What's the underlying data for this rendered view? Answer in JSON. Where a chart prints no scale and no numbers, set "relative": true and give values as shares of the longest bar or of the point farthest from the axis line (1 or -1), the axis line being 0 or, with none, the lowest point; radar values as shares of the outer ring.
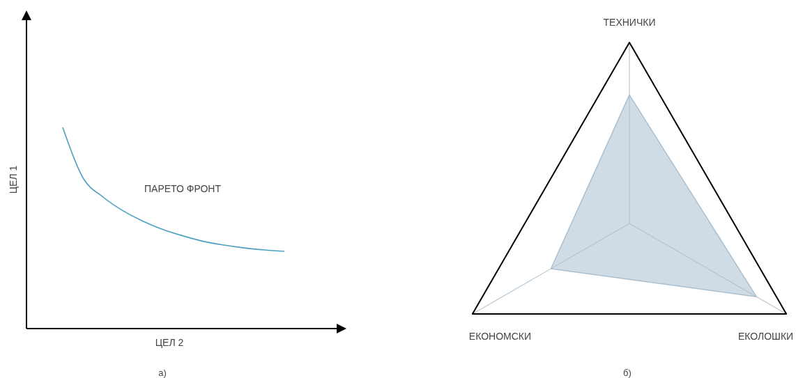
{
  "chart_data": [
    {
      "type": "line",
      "relative": true,
      "xlabel": "ЦЕЛ 2",
      "ylabel": "ЦЕЛ 1",
      "annotations": [
        "ПАРЕТО ФРОНТ",
        "а)"
      ],
      "categories": [
        null,
        null,
        null,
        null,
        null,
        null,
        null,
        null,
        null,
        null,
        null,
        null
      ],
      "series": [
        {
          "color": "#4a9fc0",
          "values": [
            1,
            0.75,
            0.654,
            0.585,
            0.533,
            0.491,
            0.46,
            0.433,
            0.415,
            0.401,
            0.391,
            0.384
          ]
        }
      ]
    },
    {
      "type": "radar",
      "relative": true,
      "annotations": [
        "б)"
      ],
      "categories": [
        "ТЕХНИЧКИ",
        "ЕКОЛОШКИ",
        "ЕКОНОМСКИ"
      ],
      "series": [
        {
          "color": "#a9bfd0",
          "values": [
            0.71,
            0.81,
            0.5
          ]
        }
      ]
    }
  ]
}
